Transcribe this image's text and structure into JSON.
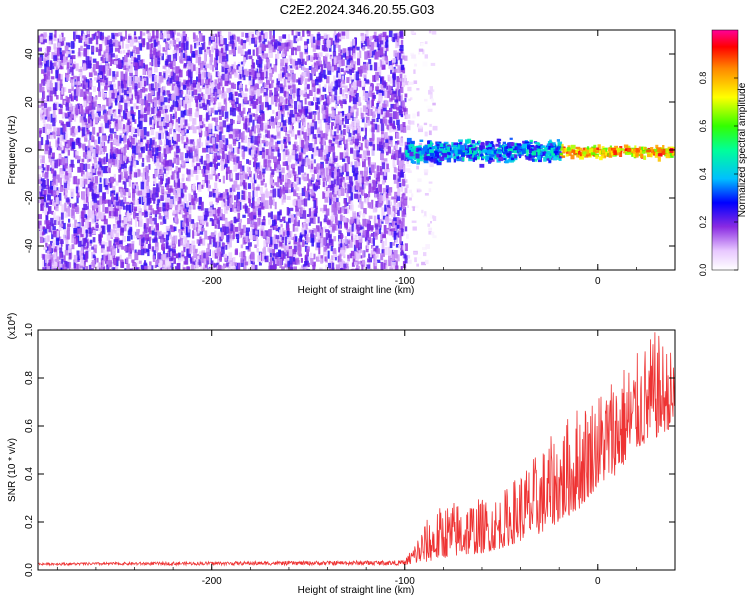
{
  "title": "C2E2.2024.346.20.55.G03",
  "chart_data": [
    {
      "type": "heatmap",
      "xlabel": "Height of straight line (km)",
      "ylabel": "Frequency (Hz)",
      "xlim": [
        -290,
        40
      ],
      "ylim": [
        -50,
        50
      ],
      "x_ticks": [
        -200,
        -100,
        0
      ],
      "x_tick_labels": [
        "-200",
        "-100",
        "0"
      ],
      "y_ticks": [
        -40,
        -20,
        0,
        20,
        40
      ],
      "y_tick_labels": [
        "-40",
        "-20",
        "0",
        "20",
        "40"
      ],
      "colorbar": {
        "label": "Normalized spectral amplitude",
        "range": [
          0,
          1
        ],
        "ticks": [
          0,
          0.2,
          0.4,
          0.6,
          0.8
        ],
        "tick_labels": [
          "0.0",
          "0.2",
          "0.4",
          "0.6",
          "0.8"
        ]
      },
      "regions": [
        {
          "x_range": [
            -290,
            -100
          ],
          "freq_range": [
            -50,
            50
          ],
          "amplitude": [
            0.05,
            0.25
          ]
        },
        {
          "x_range": [
            -100,
            -85
          ],
          "freq_range": [
            -50,
            50
          ],
          "amplitude": [
            0.0,
            0.1
          ]
        },
        {
          "x_range": [
            -100,
            -20
          ],
          "freq_range": [
            -6,
            6
          ],
          "amplitude": [
            0.2,
            0.5
          ]
        },
        {
          "x_range": [
            -20,
            40
          ],
          "freq_range": [
            -3,
            3
          ],
          "amplitude": [
            0.6,
            0.95
          ]
        }
      ]
    },
    {
      "type": "line",
      "xlabel": "Height of straight line (km)",
      "ylabel": "SNR (10 * v/v)",
      "scale_label": "(x10^4)",
      "xlim": [
        -290,
        40
      ],
      "ylim": [
        0,
        1.0
      ],
      "x_ticks": [
        -200,
        -100,
        0
      ],
      "x_tick_labels": [
        "-200",
        "-100",
        "0"
      ],
      "y_ticks": [
        0,
        0.2,
        0.4,
        0.6,
        0.8,
        1.0
      ],
      "y_tick_labels": [
        "0.0",
        "0.2",
        "0.4",
        "0.6",
        "0.8",
        "1.0"
      ],
      "series_color": "#ee3333",
      "envelope": {
        "x": [
          -290,
          -100,
          -90,
          -80,
          -70,
          -60,
          -50,
          -40,
          -30,
          -20,
          -10,
          0,
          10,
          20,
          30,
          40
        ],
        "baseline": [
          0.02,
          0.02,
          0.03,
          0.05,
          0.06,
          0.07,
          0.09,
          0.12,
          0.15,
          0.2,
          0.25,
          0.35,
          0.4,
          0.5,
          0.55,
          0.6
        ],
        "peak": [
          0.03,
          0.04,
          0.2,
          0.28,
          0.3,
          0.3,
          0.32,
          0.42,
          0.5,
          0.6,
          0.7,
          0.75,
          0.85,
          0.9,
          1.0,
          0.9
        ]
      }
    }
  ]
}
